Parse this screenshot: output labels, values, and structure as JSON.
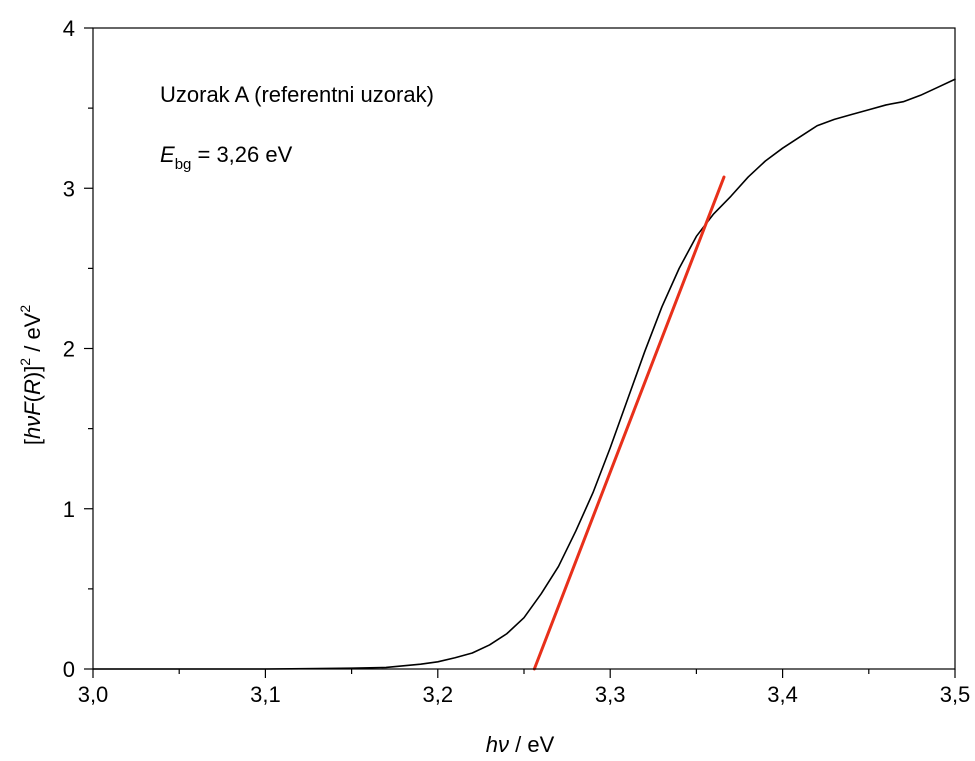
{
  "chart_data": {
    "type": "line",
    "title": "",
    "xlabel": {
      "italic": "hν",
      "rest": " / eV"
    },
    "ylabel": {
      "open": "[",
      "italic1": "hνF",
      "paren_open": "(",
      "italic2": "R",
      "paren_close": ")]",
      "sup1": "2",
      "rest": " / eV",
      "sup2": "2"
    },
    "xlim": [
      3.0,
      3.5
    ],
    "ylim": [
      0,
      4
    ],
    "x_ticks": [
      3.0,
      3.1,
      3.2,
      3.3,
      3.4,
      3.5
    ],
    "x_tick_labels": [
      "3,0",
      "3,1",
      "3,2",
      "3,3",
      "3,4",
      "3,5"
    ],
    "y_ticks": [
      0,
      1,
      2,
      3,
      4
    ],
    "y_tick_labels": [
      "0",
      "1",
      "2",
      "3",
      "4"
    ],
    "grid": false,
    "annotations": {
      "sample": "Uzorak A (referentni uzorak)",
      "ebg_symbol": "E",
      "ebg_subscript": "bg",
      "ebg_value": " = 3,26 eV"
    },
    "series": [
      {
        "style": "curve",
        "color": "#000000",
        "x": [
          3.0,
          3.05,
          3.1,
          3.13,
          3.15,
          3.17,
          3.18,
          3.19,
          3.2,
          3.21,
          3.22,
          3.23,
          3.24,
          3.25,
          3.26,
          3.27,
          3.28,
          3.29,
          3.3,
          3.31,
          3.32,
          3.33,
          3.34,
          3.35,
          3.36,
          3.37,
          3.38,
          3.39,
          3.4,
          3.41,
          3.42,
          3.43,
          3.44,
          3.45,
          3.46,
          3.47,
          3.48,
          3.49,
          3.5
        ],
        "y": [
          0.0,
          0.0,
          0.0,
          0.003,
          0.005,
          0.01,
          0.02,
          0.03,
          0.045,
          0.07,
          0.1,
          0.15,
          0.22,
          0.32,
          0.47,
          0.64,
          0.86,
          1.1,
          1.38,
          1.68,
          1.98,
          2.26,
          2.5,
          2.7,
          2.84,
          2.95,
          3.07,
          3.17,
          3.25,
          3.32,
          3.39,
          3.43,
          3.46,
          3.49,
          3.52,
          3.54,
          3.58,
          3.63,
          3.68
        ]
      },
      {
        "style": "fit-line",
        "color": "#e8301a",
        "x": [
          3.256,
          3.366
        ],
        "y": [
          0.0,
          3.07
        ]
      }
    ]
  }
}
